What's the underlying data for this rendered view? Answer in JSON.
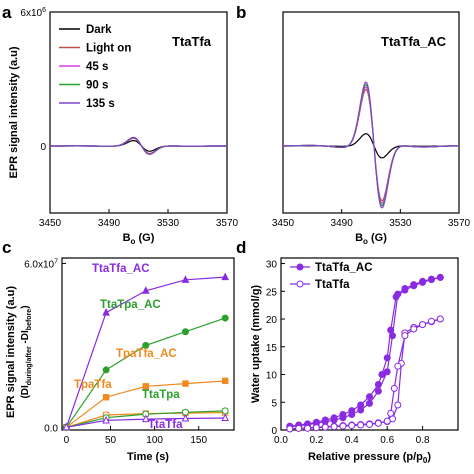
{
  "chart_data": [
    {
      "panel": "a",
      "type": "line",
      "title": "TtaTfa",
      "xlabel": "B",
      "xlabel_sub": "o",
      "xlabel_unit": " (G)",
      "ylabel": "EPR signal intensity (a.u)",
      "xlim": [
        3450,
        3570
      ],
      "ylim": [
        -3000000,
        6000000
      ],
      "x_ticks": [
        3450,
        3490,
        3530,
        3570
      ],
      "y_ticks": [
        {
          "v": 6000000,
          "base": "6x10",
          "exp": "6"
        },
        {
          "v": 0,
          "base": "0",
          "exp": ""
        }
      ],
      "legend": "top-left",
      "series": [
        {
          "name": "Dark",
          "color": "#000000",
          "amp": 0.44
        },
        {
          "name": "Light on",
          "color": "#c0504d",
          "amp": 0.62
        },
        {
          "name": "45 s",
          "color": "#e23be3",
          "amp": 0.66
        },
        {
          "name": "90 s",
          "color": "#2ca02c",
          "amp": 0.68
        },
        {
          "name": "135 s",
          "color": "#7b45cc",
          "amp": 0.7
        }
      ]
    },
    {
      "panel": "b",
      "type": "line",
      "title": "TtaTfa_AC",
      "xlabel": "B",
      "xlabel_sub": "o",
      "xlabel_unit": " (G)",
      "xlim": [
        3450,
        3570
      ],
      "ylim": [
        -3000000,
        6000000
      ],
      "x_ticks": [
        3450,
        3490,
        3530,
        3570
      ],
      "series": [
        {
          "name": "Dark",
          "color": "#000000",
          "amp": 1.0
        },
        {
          "name": "Light on",
          "color": "#c0504d",
          "amp": 4.6
        },
        {
          "name": "45 s",
          "color": "#e23be3",
          "amp": 4.8
        },
        {
          "name": "90 s",
          "color": "#2ca02c",
          "amp": 5.0
        },
        {
          "name": "135 s",
          "color": "#7b45cc",
          "amp": 5.2
        }
      ]
    },
    {
      "panel": "c",
      "type": "line",
      "xlabel": "Time (s)",
      "ylabel": "EPR signal intensity  (a.u)",
      "ylabel2_pre": "(DI",
      "ylabel2_sub1": "during/after",
      "ylabel2_mid": " -DI",
      "ylabel2_sub2": "before",
      "ylabel2_post": ")",
      "xlim": [
        -5,
        190
      ],
      "ylim": [
        -1000000,
        62000000
      ],
      "x_ticks": [
        0,
        50,
        100,
        150,
        200
      ],
      "y_ticks": [
        {
          "v": 60000000,
          "base": "6.0x10",
          "exp": "7"
        },
        {
          "v": 0,
          "base": "0.0",
          "exp": ""
        }
      ],
      "x": [
        0,
        45,
        90,
        135,
        180
      ],
      "series": [
        {
          "name": "TtaTfa_AC",
          "color": "#8a2be2",
          "marker": "filled-triangle",
          "values": [
            0,
            42000000,
            50000000,
            54000000,
            55000000
          ]
        },
        {
          "name": "TtaTpa_AC",
          "color": "#2ca02c",
          "marker": "filled-circle",
          "values": [
            0,
            21000000,
            30000000,
            35000000,
            40000000
          ]
        },
        {
          "name": "TpaTfa_AC",
          "color": "#f0891e",
          "marker": "filled-square",
          "values": [
            0,
            11000000,
            15000000,
            16000000,
            17000000
          ]
        },
        {
          "name": "TpaTfa",
          "color": "#f0891e",
          "marker": "open-square",
          "values": [
            0,
            4500000,
            5000000,
            5200000,
            5400000
          ]
        },
        {
          "name": "TtaTpa",
          "color": "#2ca02c",
          "marker": "open-circle",
          "values": [
            0,
            3500000,
            4800000,
            5500000,
            6000000
          ]
        },
        {
          "name": "TtaTfa",
          "color": "#8a2be2",
          "marker": "open-triangle",
          "values": [
            0,
            2500000,
            3000000,
            3200000,
            3400000
          ]
        }
      ]
    },
    {
      "panel": "d",
      "type": "line",
      "xlabel": "Relative pressure (p/p",
      "xlabel_sub": "0",
      "xlabel_post": ")",
      "ylabel": "Water uptake (mmol/g)",
      "xlim": [
        0,
        1.0
      ],
      "ylim": [
        0,
        31
      ],
      "x_ticks": [
        0.0,
        0.2,
        0.4,
        0.6,
        0.8
      ],
      "y_ticks": [
        0,
        5,
        10,
        15,
        20,
        25,
        30
      ],
      "legend": "top-left",
      "series": [
        {
          "name": "TtaTfa_AC",
          "color": "#8a2be2",
          "marker": "filled-circle",
          "adsorption": {
            "x": [
              0.05,
              0.1,
              0.15,
              0.2,
              0.25,
              0.3,
              0.35,
              0.4,
              0.45,
              0.5,
              0.55,
              0.6,
              0.63,
              0.66,
              0.7,
              0.75,
              0.8,
              0.85,
              0.9
            ],
            "y": [
              0.6,
              0.8,
              1.0,
              1.2,
              1.5,
              1.8,
              2.2,
              2.8,
              3.6,
              4.8,
              7.0,
              10.5,
              17,
              24.5,
              25.5,
              26.2,
              26.8,
              27.2,
              27.5
            ]
          },
          "desorption": {
            "x": [
              0.9,
              0.85,
              0.8,
              0.75,
              0.7,
              0.65,
              0.62,
              0.6,
              0.57,
              0.55,
              0.5,
              0.45,
              0.4,
              0.35,
              0.3,
              0.25,
              0.2,
              0.15,
              0.1,
              0.05
            ],
            "y": [
              27.5,
              27.1,
              26.6,
              26.0,
              25.2,
              24.0,
              18,
              13.0,
              10.0,
              8.2,
              6.0,
              4.5,
              3.5,
              2.8,
              2.2,
              1.8,
              1.4,
              1.1,
              0.9,
              0.7
            ]
          }
        },
        {
          "name": "TtaTfa",
          "color": "#8a2be2",
          "marker": "open-circle",
          "adsorption": {
            "x": [
              0.05,
              0.1,
              0.15,
              0.2,
              0.25,
              0.3,
              0.35,
              0.4,
              0.45,
              0.5,
              0.55,
              0.6,
              0.63,
              0.66,
              0.68,
              0.7,
              0.75,
              0.8,
              0.85,
              0.9
            ],
            "y": [
              0.2,
              0.3,
              0.4,
              0.5,
              0.6,
              0.7,
              0.8,
              0.9,
              1.0,
              1.1,
              1.3,
              1.5,
              2.0,
              4.5,
              12,
              17.5,
              18.5,
              19.0,
              19.5,
              20.0
            ]
          },
          "desorption": {
            "x": [
              0.9,
              0.85,
              0.8,
              0.75,
              0.7,
              0.66,
              0.64,
              0.62,
              0.6,
              0.55,
              0.5,
              0.45,
              0.4,
              0.35,
              0.3,
              0.25,
              0.2,
              0.15,
              0.1,
              0.05
            ],
            "y": [
              20.0,
              19.6,
              19.0,
              18.2,
              17.0,
              11.5,
              7.5,
              3.0,
              1.6,
              1.2,
              1.0,
              0.9,
              0.8,
              0.7,
              0.6,
              0.5,
              0.4,
              0.3,
              0.3,
              0.2
            ]
          }
        }
      ]
    }
  ],
  "panels": {
    "a": {
      "letter": "a"
    },
    "b": {
      "letter": "b"
    },
    "c": {
      "letter": "c"
    },
    "d": {
      "letter": "d"
    }
  }
}
